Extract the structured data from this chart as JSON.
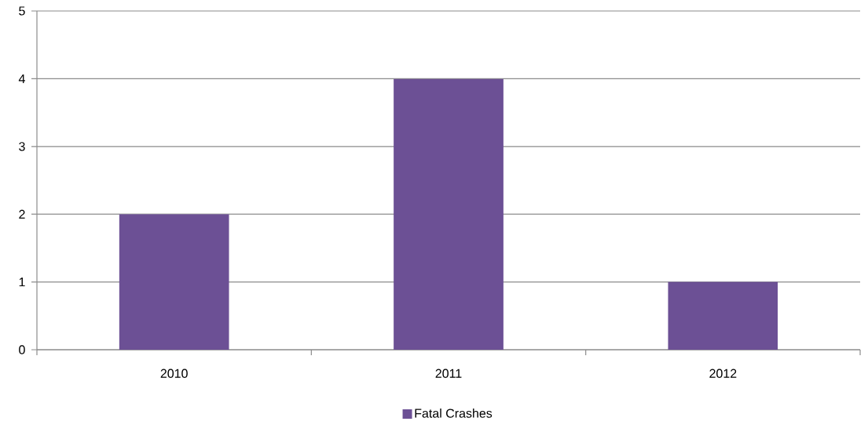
{
  "chart_data": {
    "type": "bar",
    "categories": [
      "2010",
      "2011",
      "2012"
    ],
    "series": [
      {
        "name": "Fatal Crashes",
        "color": "#6c5095",
        "values": [
          2,
          4,
          1
        ]
      }
    ],
    "ylim": [
      0,
      5
    ],
    "yticks": [
      0,
      1,
      2,
      3,
      4,
      5
    ],
    "grid": "y",
    "legend": "bottom"
  }
}
